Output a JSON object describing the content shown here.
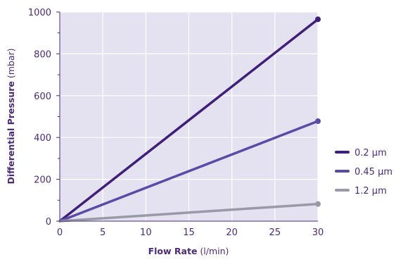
{
  "chart_data": {
    "type": "line",
    "xlabel_bold": "Flow Rate",
    "xlabel_unit": " (l/min)",
    "ylabel_bold": "Differential Pressure",
    "ylabel_unit": " (mbar)",
    "xlim": [
      0,
      30
    ],
    "ylim": [
      0,
      1000
    ],
    "xticks": [
      0,
      5,
      10,
      15,
      20,
      25,
      30
    ],
    "yticks": [
      0,
      200,
      400,
      600,
      800,
      1000
    ],
    "grid": true,
    "legend_position": "right",
    "plot_background": "#e4e2f1",
    "series": [
      {
        "name": "0.2 µm",
        "color": "#3f1f7a",
        "x": [
          0,
          30
        ],
        "y": [
          0,
          965
        ]
      },
      {
        "name": "0.45 µm",
        "color": "#5b4ba6",
        "x": [
          0,
          30
        ],
        "y": [
          0,
          478
        ]
      },
      {
        "name": "1.2 µm",
        "color": "#9a99a8",
        "x": [
          0,
          30
        ],
        "y": [
          0,
          82
        ]
      }
    ]
  }
}
